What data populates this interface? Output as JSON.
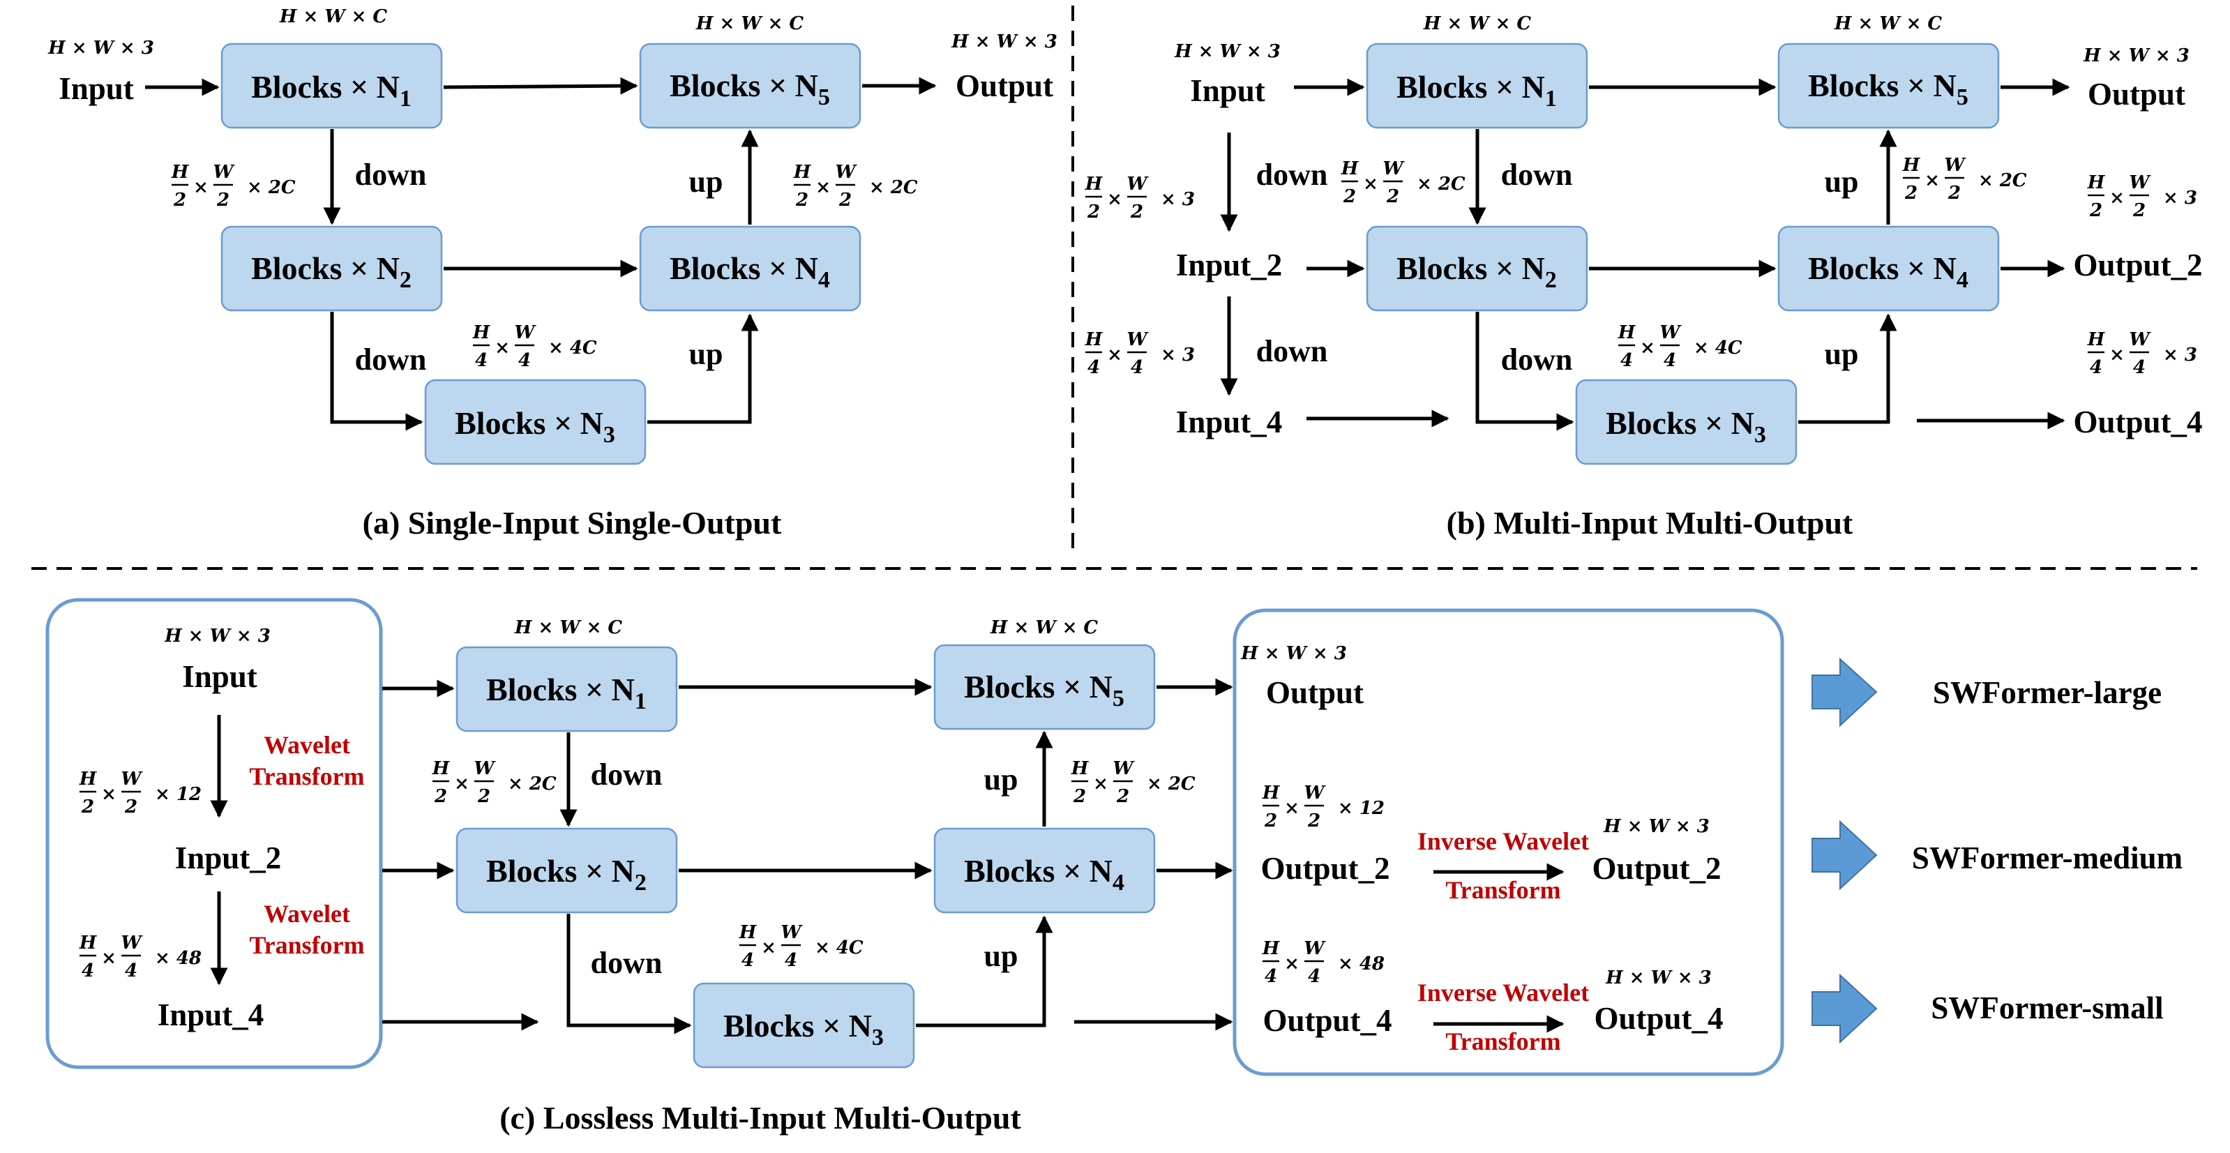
{
  "blocks": {
    "b1": "Blocks × N",
    "b2": "Blocks × N",
    "b3": "Blocks × N",
    "b4": "Blocks × N",
    "b5": "Blocks × N",
    "sub1": "1",
    "sub2": "2",
    "sub3": "3",
    "sub4": "4",
    "sub5": "5"
  },
  "io": {
    "input": "Input",
    "output": "Output",
    "input_2": "Input_2",
    "input_4": "Input_4",
    "output_2": "Output_2",
    "output_4": "Output_4"
  },
  "dims": {
    "hw3": "H × W × 3",
    "hwc": "H × W × C",
    "half_2c": "H/2 × W/2 × 2C",
    "quarter_4c": "H/4 × W/4 × 4C",
    "half_3": "H/2 × W/2 × 3",
    "quarter_3": "H/4 × W/4 × 3",
    "half_12": "H/2 × W/2 × 12",
    "quarter_48": "H/4 × W/4 × 48"
  },
  "ops": {
    "down": "down",
    "up": "up",
    "wavelet_line1": "Wavelet",
    "wavelet_line2": "Transform",
    "inverse_line1": "Inverse Wavelet",
    "inverse_line2": "Transform"
  },
  "captions": {
    "a": "(a) Single-Input Single-Output",
    "b": "(b) Multi-Input Multi-Output",
    "c": "(c) Lossless Multi-Input Multi-Output"
  },
  "variants": {
    "large": "SWFormer-large",
    "medium": "SWFormer-medium",
    "small": "SWFormer-small"
  }
}
